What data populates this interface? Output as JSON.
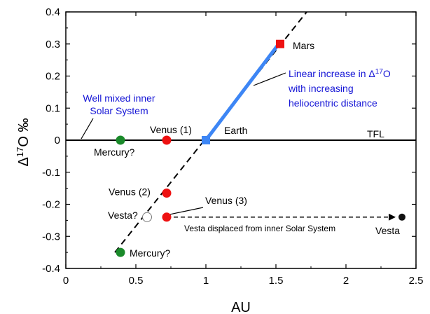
{
  "chart_data": {
    "type": "scatter",
    "xlabel": "AU",
    "ylabel": "Δ17O ‰",
    "xlim": [
      0,
      2.5
    ],
    "ylim": [
      -0.4,
      0.4
    ],
    "x_ticks": [
      0,
      0.5,
      1,
      1.5,
      2,
      2.5
    ],
    "x_tick_labels": [
      "0",
      "0.5",
      "1",
      "1.5",
      "2",
      "2.5"
    ],
    "y_ticks": [
      0.4,
      0.3,
      0.2,
      0.1,
      0,
      -0.1,
      -0.2,
      -0.3,
      -0.4
    ],
    "y_tick_labels": [
      "0.4",
      "0.3",
      "0.2",
      "0.1",
      "0",
      "-0.1",
      "-0.2",
      "-0.3",
      "-0.4"
    ],
    "tfl": {
      "y": 0,
      "label": "TFL"
    },
    "dashed_trend": {
      "x": [
        0.35,
        1.72
      ],
      "y": [
        -0.35,
        0.4
      ]
    },
    "linear_increase": {
      "x": [
        1.0,
        1.52
      ],
      "y": [
        0.0,
        0.3
      ],
      "color": "#3d86f5"
    },
    "points": [
      {
        "name": "Mercury?",
        "x": 0.39,
        "y": 0.0,
        "shape": "circle",
        "color": "#1a8a2a"
      },
      {
        "name": "Venus (1)",
        "x": 0.72,
        "y": 0.0,
        "shape": "circle",
        "color": "#ee1111"
      },
      {
        "name": "Venus (2)",
        "x": 0.72,
        "y": -0.165,
        "shape": "circle",
        "color": "#ee1111"
      },
      {
        "name": "Venus (3)",
        "x": 0.72,
        "y": -0.24,
        "shape": "circle",
        "color": "#ee1111"
      },
      {
        "name": "Mercury?",
        "x": 0.39,
        "y": -0.35,
        "shape": "circle",
        "color": "#1a8a2a"
      },
      {
        "name": "Vesta?",
        "x": 0.58,
        "y": -0.24,
        "shape": "circle-open",
        "color": "#ffffff"
      },
      {
        "name": "Vesta",
        "x": 2.4,
        "y": -0.24,
        "shape": "circle",
        "color": "#111111"
      },
      {
        "name": "Earth",
        "x": 1.0,
        "y": 0.0,
        "shape": "square",
        "color": "#3d86f5"
      },
      {
        "name": "Mars",
        "x": 1.53,
        "y": 0.3,
        "shape": "square",
        "color": "#ee1111"
      }
    ],
    "annotations": {
      "well_mixed_line1": "Well mixed inner",
      "well_mixed_line2": "Solar System",
      "linear_line1": "Linear increase in Δ17O",
      "linear_line2": "with increasing",
      "linear_line3": "heliocentric distance",
      "vesta_displaced": "Vesta displaced from inner Solar System"
    },
    "colors": {
      "annotation_text": "#1515d6",
      "trend_blue": "#3d86f5",
      "mars_red": "#ee1111",
      "mercury_green": "#1a8a2a"
    }
  }
}
